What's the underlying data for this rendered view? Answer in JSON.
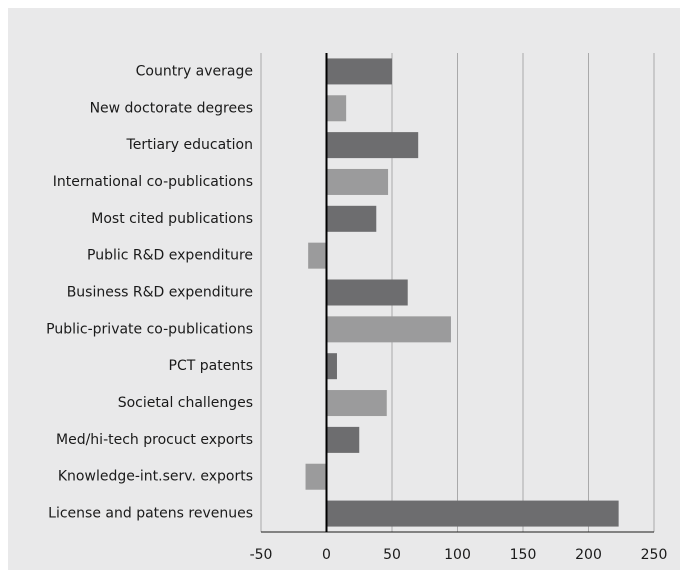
{
  "chart_data": {
    "type": "bar",
    "orientation": "horizontal",
    "categories": [
      "Country average",
      "New doctorate degrees",
      "Tertiary education",
      "International co-publications",
      "Most cited publications",
      "Public R&D expenditure",
      "Business R&D expenditure",
      "Public-private co-publications",
      "PCT patents",
      "Societal challenges",
      "Med/hi-tech procuct exports",
      "Knowledge-int.serv. exports",
      "License and patens revenues"
    ],
    "values": [
      50,
      15,
      70,
      47,
      38,
      -14,
      62,
      95,
      8,
      46,
      25,
      -16,
      223
    ],
    "colors": [
      "#6d6d6f",
      "#9b9b9c",
      "#6d6d6f",
      "#9b9b9c",
      "#6d6d6f",
      "#9b9b9c",
      "#6d6d6f",
      "#9b9b9c",
      "#6d6d6f",
      "#9b9b9c",
      "#6d6d6f",
      "#9b9b9c",
      "#6d6d6f"
    ],
    "xlim": [
      -50,
      250
    ],
    "xticks": [
      -50,
      0,
      50,
      100,
      150,
      200,
      250
    ],
    "grid": true
  }
}
